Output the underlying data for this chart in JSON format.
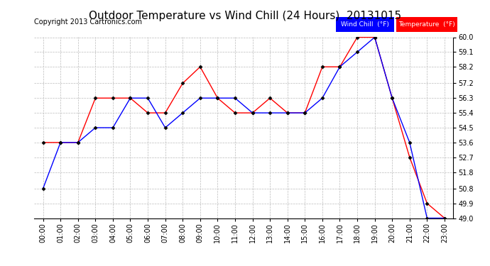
{
  "title": "Outdoor Temperature vs Wind Chill (24 Hours)  20131015",
  "copyright": "Copyright 2013 Cartronics.com",
  "x_labels": [
    "00:00",
    "01:00",
    "02:00",
    "03:00",
    "04:00",
    "05:00",
    "06:00",
    "07:00",
    "08:00",
    "09:00",
    "10:00",
    "11:00",
    "12:00",
    "13:00",
    "14:00",
    "15:00",
    "16:00",
    "17:00",
    "18:00",
    "19:00",
    "20:00",
    "21:00",
    "22:00",
    "23:00"
  ],
  "temperature": [
    53.6,
    53.6,
    53.6,
    56.3,
    56.3,
    56.3,
    55.4,
    55.4,
    57.2,
    58.2,
    56.3,
    55.4,
    55.4,
    56.3,
    55.4,
    55.4,
    58.2,
    58.2,
    60.0,
    60.0,
    56.3,
    52.7,
    49.9,
    49.0
  ],
  "wind_chill": [
    50.8,
    53.6,
    53.6,
    54.5,
    54.5,
    56.3,
    56.3,
    54.5,
    55.4,
    56.3,
    56.3,
    56.3,
    55.4,
    55.4,
    55.4,
    55.4,
    56.3,
    58.2,
    59.1,
    60.0,
    56.3,
    53.6,
    49.0,
    49.0
  ],
  "ylim_min": 49.0,
  "ylim_max": 60.0,
  "yticks": [
    49.0,
    49.9,
    50.8,
    51.8,
    52.7,
    53.6,
    54.5,
    55.4,
    56.3,
    57.2,
    58.2,
    59.1,
    60.0
  ],
  "temp_color": "#ff0000",
  "wind_chill_color": "#0000ff",
  "bg_color": "#ffffff",
  "grid_color": "#bbbbbb",
  "title_fontsize": 11,
  "copyright_fontsize": 7,
  "tick_fontsize": 7,
  "legend_wind_chill_label": "Wind Chill  (°F)",
  "legend_temp_label": "Temperature  (°F)",
  "legend_wc_bg": "#0000ff",
  "legend_temp_bg": "#ff0000",
  "legend_text_color": "#ffffff"
}
